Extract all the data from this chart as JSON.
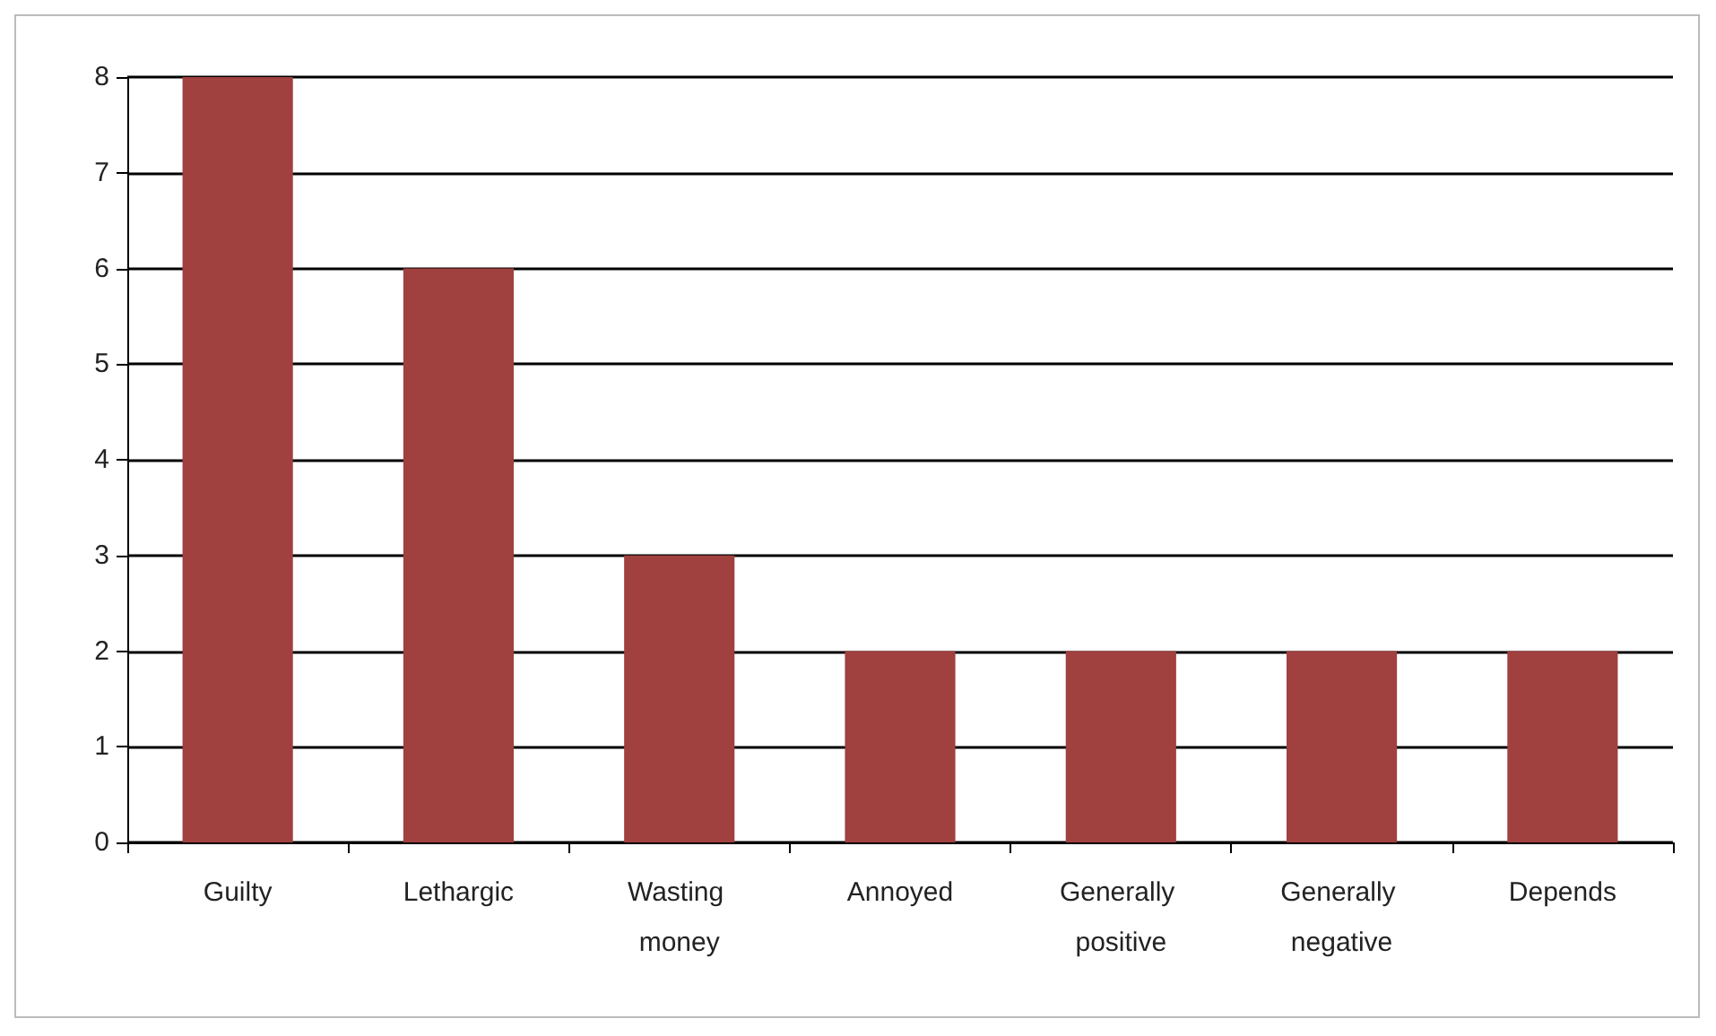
{
  "chart_data": {
    "type": "bar",
    "categories": [
      "Guilty",
      "Lethargic",
      "Wasting money",
      "Annoyed",
      "Generally positive",
      "Generally negative",
      "Depends"
    ],
    "values": [
      8,
      6,
      3,
      2,
      2,
      2,
      2
    ],
    "color": "#a0403f",
    "ylim": [
      0,
      8
    ],
    "yticks": [
      0,
      1,
      2,
      3,
      4,
      5,
      6,
      7,
      8
    ],
    "grid": "y"
  }
}
